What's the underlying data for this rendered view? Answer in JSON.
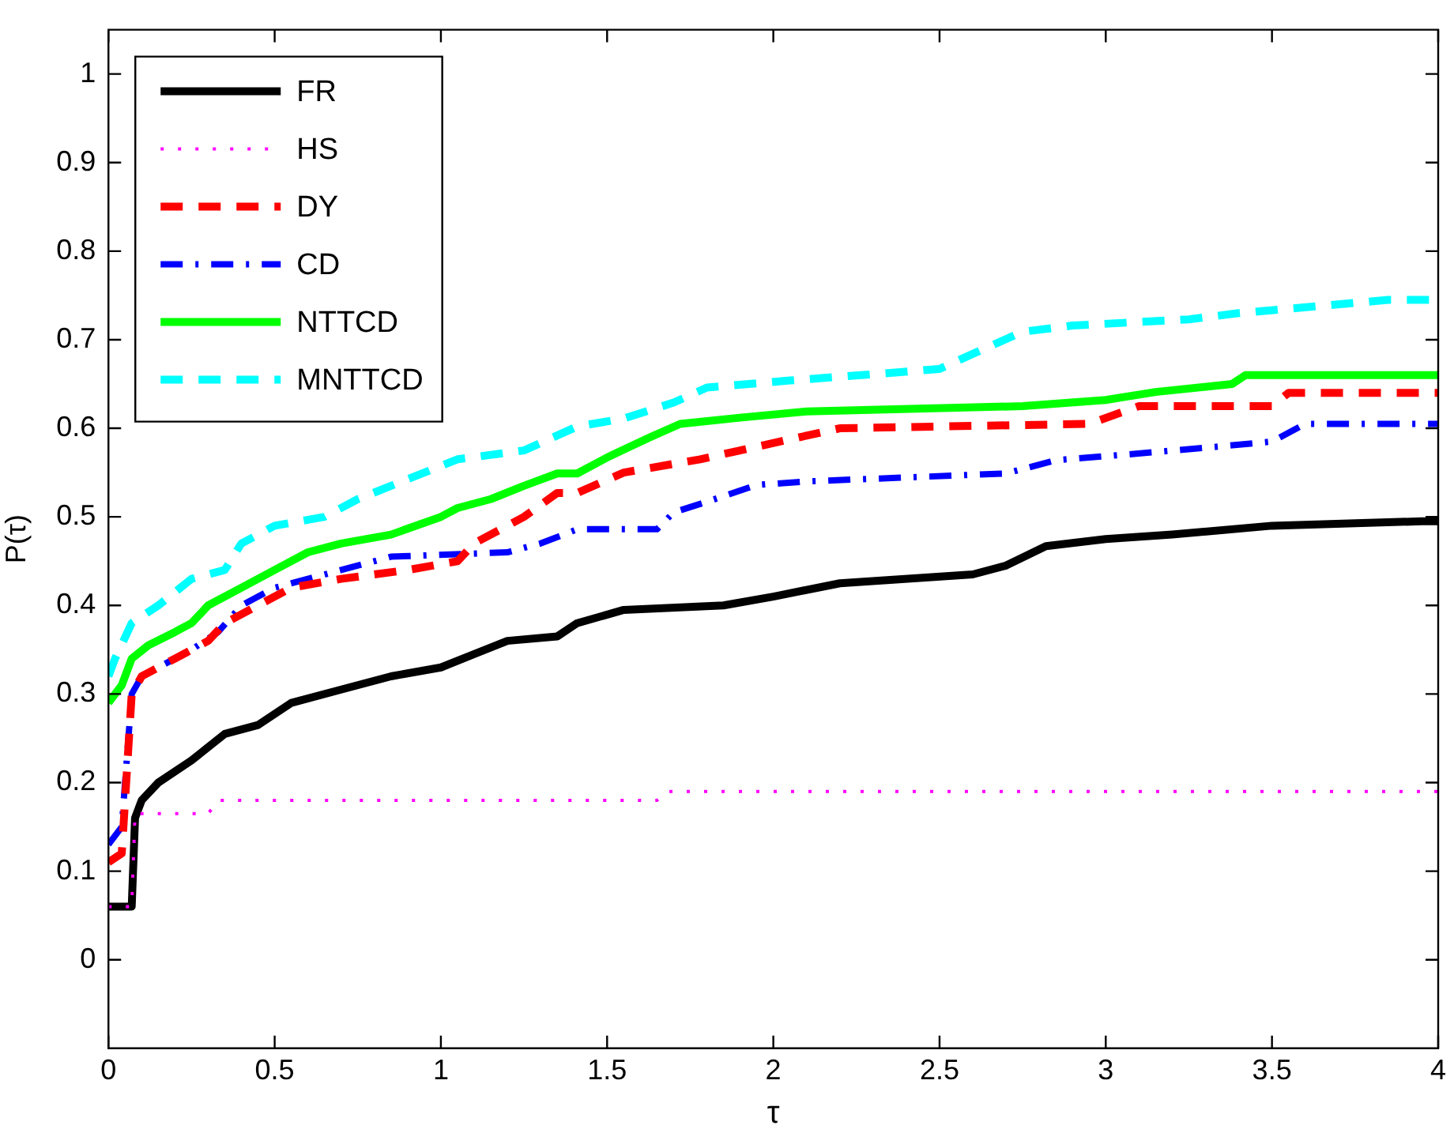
{
  "chart_data": {
    "type": "line",
    "xlabel": "τ",
    "ylabel": "P(τ)",
    "xlim": [
      0,
      4
    ],
    "ylim": [
      -0.1,
      1.05
    ],
    "xticks": [
      0,
      0.5,
      1,
      1.5,
      2,
      2.5,
      3,
      3.5,
      4
    ],
    "yticks": [
      0,
      0.1,
      0.2,
      0.3,
      0.4,
      0.5,
      0.6,
      0.7,
      0.8,
      0.9,
      1
    ],
    "grid": false,
    "legend": "top left",
    "marker": "none",
    "series": [
      {
        "name": "FR",
        "color": "#000000",
        "line_style": "solid",
        "x": [
          0,
          0.07,
          0.08,
          0.1,
          0.15,
          0.25,
          0.35,
          0.45,
          0.55,
          0.7,
          0.85,
          1.0,
          1.1,
          1.2,
          1.35,
          1.41,
          1.55,
          1.85,
          2.0,
          2.2,
          2.6,
          2.7,
          2.82,
          3.0,
          3.2,
          3.5,
          3.95,
          4
        ],
        "values": [
          0.06,
          0.06,
          0.16,
          0.18,
          0.2,
          0.225,
          0.255,
          0.265,
          0.29,
          0.305,
          0.32,
          0.33,
          0.345,
          0.36,
          0.365,
          0.38,
          0.395,
          0.4,
          0.41,
          0.425,
          0.435,
          0.445,
          0.467,
          0.475,
          0.48,
          0.49,
          0.495,
          0.495
        ]
      },
      {
        "name": "HS",
        "color": "#ff00ff",
        "line_style": "dotted",
        "x": [
          0,
          0.07,
          0.08,
          0.3,
          0.33,
          1.65,
          1.68,
          4
        ],
        "values": [
          0.06,
          0.06,
          0.165,
          0.165,
          0.18,
          0.18,
          0.19,
          0.19
        ]
      },
      {
        "name": "DY",
        "color": "#ff0000",
        "line_style": "dashed",
        "x": [
          0,
          0.04,
          0.07,
          0.1,
          0.2,
          0.3,
          0.35,
          0.45,
          0.55,
          0.7,
          0.9,
          1.05,
          1.1,
          1.2,
          1.25,
          1.35,
          1.41,
          1.55,
          1.78,
          1.9,
          2.2,
          2.95,
          3.1,
          3.5,
          3.55,
          4
        ],
        "values": [
          0.11,
          0.12,
          0.3,
          0.32,
          0.34,
          0.36,
          0.38,
          0.4,
          0.42,
          0.43,
          0.44,
          0.45,
          0.47,
          0.49,
          0.5,
          0.527,
          0.527,
          0.55,
          0.565,
          0.575,
          0.6,
          0.605,
          0.625,
          0.625,
          0.64,
          0.64
        ]
      },
      {
        "name": "CD",
        "color": "#0000ff",
        "line_style": "dashdot",
        "x": [
          0,
          0.04,
          0.07,
          0.1,
          0.15,
          0.25,
          0.33,
          0.4,
          0.5,
          0.7,
          0.85,
          1.2,
          1.3,
          1.41,
          1.65,
          1.7,
          1.8,
          1.95,
          2.1,
          2.7,
          2.85,
          3.05,
          3.3,
          3.5,
          3.6,
          4
        ],
        "values": [
          0.13,
          0.15,
          0.3,
          0.32,
          0.33,
          0.35,
          0.37,
          0.4,
          0.42,
          0.44,
          0.455,
          0.46,
          0.47,
          0.486,
          0.486,
          0.505,
          0.517,
          0.536,
          0.54,
          0.549,
          0.564,
          0.57,
          0.578,
          0.585,
          0.605,
          0.605
        ]
      },
      {
        "name": "NTTCD",
        "color": "#00ff00",
        "line_style": "solid",
        "x": [
          0,
          0.04,
          0.07,
          0.12,
          0.2,
          0.25,
          0.3,
          0.4,
          0.5,
          0.6,
          0.7,
          0.85,
          1.0,
          1.05,
          1.15,
          1.25,
          1.35,
          1.41,
          1.5,
          1.55,
          1.63,
          1.72,
          1.9,
          2.1,
          2.75,
          3.0,
          3.15,
          3.38,
          3.42,
          4
        ],
        "values": [
          0.29,
          0.31,
          0.34,
          0.355,
          0.37,
          0.38,
          0.4,
          0.42,
          0.44,
          0.46,
          0.47,
          0.48,
          0.5,
          0.51,
          0.52,
          0.535,
          0.549,
          0.549,
          0.567,
          0.576,
          0.59,
          0.605,
          0.612,
          0.619,
          0.625,
          0.632,
          0.641,
          0.65,
          0.66,
          0.66
        ]
      },
      {
        "name": "MNTTCD",
        "color": "#00ffff",
        "line_style": "dashed",
        "x": [
          0,
          0.02,
          0.07,
          0.15,
          0.25,
          0.35,
          0.4,
          0.5,
          0.65,
          0.75,
          0.85,
          0.95,
          1.05,
          1.25,
          1.41,
          1.55,
          1.7,
          1.8,
          2.05,
          2.3,
          2.5,
          2.6,
          2.75,
          2.9,
          3.25,
          3.4,
          3.85,
          4
        ],
        "values": [
          0.32,
          0.34,
          0.38,
          0.4,
          0.43,
          0.44,
          0.47,
          0.49,
          0.5,
          0.52,
          0.535,
          0.55,
          0.565,
          0.575,
          0.602,
          0.611,
          0.629,
          0.646,
          0.654,
          0.661,
          0.667,
          0.684,
          0.709,
          0.716,
          0.723,
          0.73,
          0.745,
          0.745
        ]
      }
    ]
  }
}
